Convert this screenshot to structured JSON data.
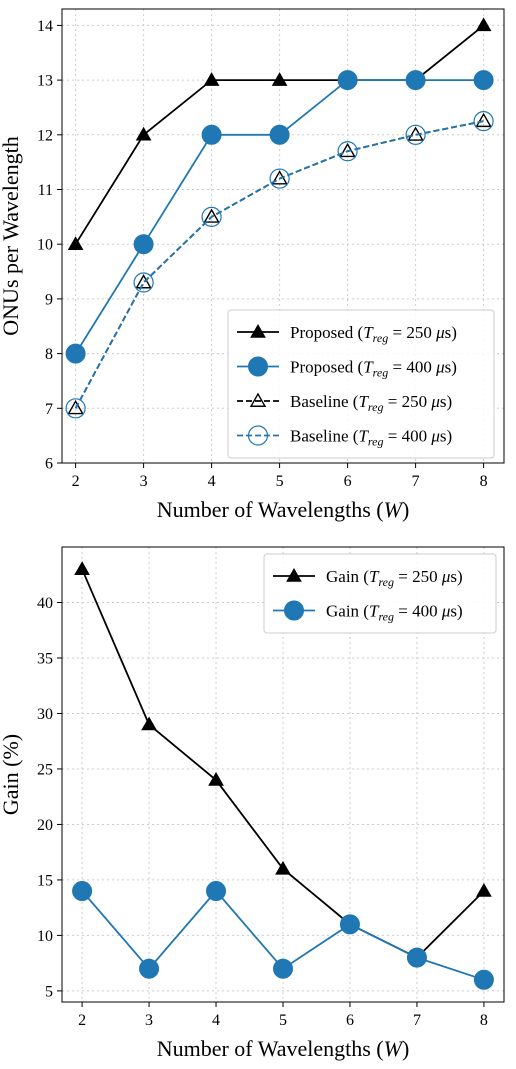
{
  "colors": {
    "black": "#000000",
    "blue": "#1f77b4"
  },
  "chart_data": [
    {
      "type": "line",
      "xlabel": "Number of Wavelengths (W)",
      "ylabel": "ONUs per Wavelength",
      "x": [
        2,
        3,
        4,
        5,
        6,
        7,
        8
      ],
      "xlim": [
        1.8,
        8.3
      ],
      "ylim": [
        6,
        14.3
      ],
      "xticks": [
        2,
        3,
        4,
        5,
        6,
        7,
        8
      ],
      "yticks": [
        6,
        7,
        8,
        9,
        10,
        11,
        12,
        13,
        14
      ],
      "grid": true,
      "legend_position": "lower-right",
      "series": [
        {
          "name": "Proposed (T_reg = 250 μs)",
          "legend_prefix": "Proposed",
          "t_value": "250",
          "values": [
            10,
            12,
            13,
            13,
            13,
            13,
            14
          ],
          "color": "#000000",
          "marker": "triangle-filled",
          "linestyle": "solid"
        },
        {
          "name": "Proposed (T_reg = 400 μs)",
          "legend_prefix": "Proposed",
          "t_value": "400",
          "values": [
            8,
            10,
            12,
            12,
            13,
            13,
            13
          ],
          "color": "#1f77b4",
          "marker": "circle-filled",
          "linestyle": "solid"
        },
        {
          "name": "Baseline (T_reg = 250 μs)",
          "legend_prefix": "Baseline",
          "t_value": "250",
          "values": [
            7,
            9.3,
            10.5,
            11.2,
            11.7,
            12,
            12.25
          ],
          "color": "#000000",
          "marker": "triangle-open",
          "linestyle": "dashed"
        },
        {
          "name": "Baseline (T_reg = 400 μs)",
          "legend_prefix": "Baseline",
          "t_value": "400",
          "values": [
            7,
            9.3,
            10.5,
            11.2,
            11.7,
            12,
            12.25
          ],
          "color": "#1f77b4",
          "marker": "circle-open",
          "linestyle": "dashed"
        }
      ]
    },
    {
      "type": "line",
      "xlabel": "Number of Wavelengths (W)",
      "ylabel": "Gain (%)",
      "x": [
        2,
        3,
        4,
        5,
        6,
        7,
        8
      ],
      "xlim": [
        1.7,
        8.3
      ],
      "ylim": [
        4,
        45
      ],
      "xticks": [
        2,
        3,
        4,
        5,
        6,
        7,
        8
      ],
      "yticks": [
        5,
        10,
        15,
        20,
        25,
        30,
        35,
        40
      ],
      "grid": true,
      "legend_position": "upper-right",
      "series": [
        {
          "name": "Gain (T_reg = 250 μs)",
          "legend_prefix": "Gain",
          "t_value": "250",
          "values": [
            43,
            29,
            24,
            16,
            11,
            8,
            14
          ],
          "color": "#000000",
          "marker": "triangle-filled",
          "linestyle": "solid"
        },
        {
          "name": "Gain (T_reg = 400 μs)",
          "legend_prefix": "Gain",
          "t_value": "400",
          "values": [
            14,
            7,
            14,
            7,
            11,
            8,
            6
          ],
          "color": "#1f77b4",
          "marker": "circle-filled",
          "linestyle": "solid"
        }
      ]
    }
  ]
}
